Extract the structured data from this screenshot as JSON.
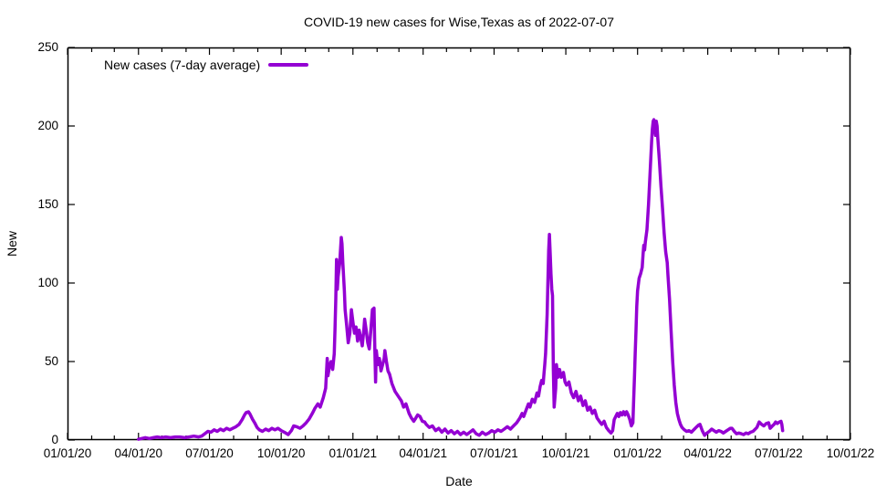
{
  "page": {
    "background": "#ffffff",
    "text_color": "#000000"
  },
  "chart_data": {
    "type": "line",
    "title": "COVID-19 new cases for Wise,Texas as of 2022-07-07",
    "xlabel": "Date",
    "ylabel": "New",
    "grid": false,
    "legend_position": "top-left-inside",
    "legend": [
      {
        "label": "New cases (7-day average)",
        "color": "#9400D3"
      }
    ],
    "axis_color": "#000000",
    "ylim": [
      0,
      250
    ],
    "y_ticks": [
      0,
      50,
      100,
      150,
      200,
      250
    ],
    "x_range": [
      "2020-01-01",
      "2022-10-01"
    ],
    "x_tick_labels": [
      "01/01/20",
      "04/01/20",
      "07/01/20",
      "10/01/20",
      "01/01/21",
      "04/01/21",
      "07/01/21",
      "10/01/21",
      "01/01/22",
      "04/01/22",
      "07/01/22",
      "10/01/22"
    ],
    "x_minor_ticks": "monthly",
    "series": [
      {
        "name": "New cases (7-day average)",
        "color": "#9400D3",
        "line_width": 3.5,
        "x_unit": "days since 2020-01-01",
        "points": [
          [
            91,
            0.5
          ],
          [
            95,
            1
          ],
          [
            100,
            1.5
          ],
          [
            105,
            1
          ],
          [
            110,
            1.5
          ],
          [
            115,
            2
          ],
          [
            120,
            1.5
          ],
          [
            126,
            2
          ],
          [
            132,
            1.5
          ],
          [
            138,
            2
          ],
          [
            144,
            2
          ],
          [
            150,
            1.5
          ],
          [
            156,
            2
          ],
          [
            162,
            2.5
          ],
          [
            168,
            2
          ],
          [
            172,
            2.5
          ],
          [
            176,
            4
          ],
          [
            180,
            5.5
          ],
          [
            184,
            5
          ],
          [
            188,
            6.5
          ],
          [
            192,
            5.5
          ],
          [
            196,
            7
          ],
          [
            200,
            6
          ],
          [
            204,
            7.5
          ],
          [
            208,
            6.5
          ],
          [
            212,
            7.5
          ],
          [
            216,
            8.5
          ],
          [
            220,
            10
          ],
          [
            224,
            13
          ],
          [
            227,
            16
          ],
          [
            229,
            17.5
          ],
          [
            232,
            18
          ],
          [
            234,
            16.5
          ],
          [
            237,
            13.5
          ],
          [
            240,
            11
          ],
          [
            243,
            8
          ],
          [
            246,
            6.5
          ],
          [
            250,
            5.5
          ],
          [
            254,
            7
          ],
          [
            258,
            6
          ],
          [
            262,
            7.5
          ],
          [
            266,
            6.5
          ],
          [
            270,
            7.5
          ],
          [
            274,
            6
          ],
          [
            278,
            5
          ],
          [
            283,
            3.5
          ],
          [
            287,
            6
          ],
          [
            290,
            9
          ],
          [
            294,
            8.5
          ],
          [
            298,
            7.5
          ],
          [
            302,
            9
          ],
          [
            306,
            11
          ],
          [
            310,
            13.5
          ],
          [
            314,
            17
          ],
          [
            317,
            20
          ],
          [
            321,
            23
          ],
          [
            324,
            21
          ],
          [
            328,
            27
          ],
          [
            331,
            33
          ],
          [
            332,
            42
          ],
          [
            333,
            52
          ],
          [
            334,
            41
          ],
          [
            336,
            47
          ],
          [
            338,
            50
          ],
          [
            340,
            45
          ],
          [
            342,
            55
          ],
          [
            343,
            70
          ],
          [
            344,
            90
          ],
          [
            345,
            115
          ],
          [
            346,
            96
          ],
          [
            347,
            104
          ],
          [
            349,
            112
          ],
          [
            351,
            129
          ],
          [
            352,
            125
          ],
          [
            353,
            113
          ],
          [
            355,
            95
          ],
          [
            356,
            83
          ],
          [
            358,
            73
          ],
          [
            360,
            62
          ],
          [
            362,
            68
          ],
          [
            364,
            83
          ],
          [
            366,
            75
          ],
          [
            368,
            68
          ],
          [
            370,
            72
          ],
          [
            372,
            63
          ],
          [
            374,
            70
          ],
          [
            376,
            65
          ],
          [
            378,
            60
          ],
          [
            380,
            70
          ],
          [
            381,
            77
          ],
          [
            383,
            70
          ],
          [
            385,
            62
          ],
          [
            387,
            58
          ],
          [
            389,
            70
          ],
          [
            391,
            83
          ],
          [
            393,
            84
          ],
          [
            394,
            60
          ],
          [
            395,
            37
          ],
          [
            396,
            57
          ],
          [
            398,
            48
          ],
          [
            400,
            52
          ],
          [
            402,
            44
          ],
          [
            404,
            48
          ],
          [
            406,
            52
          ],
          [
            407,
            57
          ],
          [
            409,
            50
          ],
          [
            411,
            44
          ],
          [
            413,
            42
          ],
          [
            416,
            36
          ],
          [
            420,
            31
          ],
          [
            424,
            28
          ],
          [
            428,
            25
          ],
          [
            431,
            21
          ],
          [
            434,
            23
          ],
          [
            438,
            17
          ],
          [
            441,
            14
          ],
          [
            444,
            12
          ],
          [
            446,
            13.5
          ],
          [
            449,
            16
          ],
          [
            452,
            15
          ],
          [
            455,
            12
          ],
          [
            458,
            11.5
          ],
          [
            460,
            10
          ],
          [
            464,
            8
          ],
          [
            468,
            9
          ],
          [
            472,
            6
          ],
          [
            476,
            7.5
          ],
          [
            480,
            5
          ],
          [
            484,
            7
          ],
          [
            488,
            4.5
          ],
          [
            492,
            6
          ],
          [
            496,
            4
          ],
          [
            500,
            5.5
          ],
          [
            504,
            3.5
          ],
          [
            508,
            5
          ],
          [
            512,
            3.5
          ],
          [
            516,
            5
          ],
          [
            520,
            6.5
          ],
          [
            524,
            4
          ],
          [
            528,
            3
          ],
          [
            532,
            5
          ],
          [
            536,
            3.5
          ],
          [
            540,
            4.5
          ],
          [
            544,
            6
          ],
          [
            548,
            5
          ],
          [
            552,
            6.5
          ],
          [
            556,
            5.5
          ],
          [
            560,
            7
          ],
          [
            564,
            8.5
          ],
          [
            568,
            7
          ],
          [
            572,
            9
          ],
          [
            576,
            11
          ],
          [
            580,
            14
          ],
          [
            583,
            17
          ],
          [
            585,
            15
          ],
          [
            588,
            19
          ],
          [
            591,
            23
          ],
          [
            593,
            21
          ],
          [
            596,
            26
          ],
          [
            599,
            24
          ],
          [
            602,
            30
          ],
          [
            604,
            28
          ],
          [
            606,
            34
          ],
          [
            608,
            38
          ],
          [
            610,
            36
          ],
          [
            611,
            42
          ],
          [
            612,
            48
          ],
          [
            613,
            55
          ],
          [
            615,
            80
          ],
          [
            616,
            100
          ],
          [
            617,
            121
          ],
          [
            618,
            131
          ],
          [
            619,
            118
          ],
          [
            620,
            106
          ],
          [
            621,
            96
          ],
          [
            622,
            92
          ],
          [
            623,
            45
          ],
          [
            624,
            21
          ],
          [
            626,
            33
          ],
          [
            627,
            48
          ],
          [
            629,
            40
          ],
          [
            631,
            45
          ],
          [
            633,
            40
          ],
          [
            636,
            43
          ],
          [
            638,
            37
          ],
          [
            640,
            35
          ],
          [
            643,
            37
          ],
          [
            646,
            30
          ],
          [
            649,
            27
          ],
          [
            652,
            31
          ],
          [
            655,
            25
          ],
          [
            658,
            28
          ],
          [
            661,
            22
          ],
          [
            664,
            25
          ],
          [
            667,
            19
          ],
          [
            670,
            21
          ],
          [
            673,
            17
          ],
          [
            676,
            19
          ],
          [
            679,
            14
          ],
          [
            682,
            12
          ],
          [
            685,
            10
          ],
          [
            688,
            12
          ],
          [
            691,
            8
          ],
          [
            694,
            6
          ],
          [
            697,
            4.5
          ],
          [
            699,
            6
          ],
          [
            701,
            13
          ],
          [
            703,
            15
          ],
          [
            705,
            17
          ],
          [
            707,
            15
          ],
          [
            709,
            17.5
          ],
          [
            711,
            16
          ],
          [
            713,
            18
          ],
          [
            715,
            16
          ],
          [
            717,
            18
          ],
          [
            719,
            16
          ],
          [
            721,
            13
          ],
          [
            723,
            9
          ],
          [
            725,
            11
          ],
          [
            726,
            25
          ],
          [
            727,
            40
          ],
          [
            728,
            55
          ],
          [
            729,
            70
          ],
          [
            730,
            85
          ],
          [
            731,
            95
          ],
          [
            733,
            103
          ],
          [
            735,
            106
          ],
          [
            737,
            110
          ],
          [
            738,
            118
          ],
          [
            739,
            124
          ],
          [
            740,
            121
          ],
          [
            741,
            126
          ],
          [
            743,
            134
          ],
          [
            745,
            150
          ],
          [
            747,
            170
          ],
          [
            749,
            190
          ],
          [
            750,
            198
          ],
          [
            751,
            203
          ],
          [
            752,
            204
          ],
          [
            753,
            198
          ],
          [
            754,
            194
          ],
          [
            755,
            203
          ],
          [
            756,
            200
          ],
          [
            757,
            192
          ],
          [
            759,
            178
          ],
          [
            761,
            162
          ],
          [
            763,
            148
          ],
          [
            765,
            132
          ],
          [
            767,
            120
          ],
          [
            769,
            113
          ],
          [
            770,
            105
          ],
          [
            772,
            90
          ],
          [
            774,
            70
          ],
          [
            776,
            50
          ],
          [
            778,
            35
          ],
          [
            780,
            24
          ],
          [
            782,
            17
          ],
          [
            784,
            13
          ],
          [
            786,
            10
          ],
          [
            788,
            8
          ],
          [
            791,
            6.5
          ],
          [
            794,
            5.5
          ],
          [
            797,
            6
          ],
          [
            800,
            5
          ],
          [
            803,
            6.5
          ],
          [
            806,
            8
          ],
          [
            809,
            9.5
          ],
          [
            811,
            10
          ],
          [
            814,
            6
          ],
          [
            817,
            3
          ],
          [
            820,
            4.5
          ],
          [
            823,
            5.5
          ],
          [
            826,
            7
          ],
          [
            829,
            6
          ],
          [
            832,
            5
          ],
          [
            835,
            6
          ],
          [
            838,
            5.5
          ],
          [
            841,
            4.5
          ],
          [
            844,
            5.5
          ],
          [
            847,
            6.5
          ],
          [
            850,
            7.5
          ],
          [
            852,
            7.5
          ],
          [
            855,
            5.5
          ],
          [
            858,
            4
          ],
          [
            861,
            4.5
          ],
          [
            864,
            4
          ],
          [
            867,
            3.5
          ],
          [
            870,
            4.5
          ],
          [
            873,
            4
          ],
          [
            876,
            5
          ],
          [
            879,
            5.5
          ],
          [
            881,
            6.5
          ],
          [
            884,
            8
          ],
          [
            887,
            11.5
          ],
          [
            890,
            10
          ],
          [
            893,
            9
          ],
          [
            896,
            10.5
          ],
          [
            899,
            11
          ],
          [
            901,
            7.5
          ],
          [
            904,
            9
          ],
          [
            906,
            10
          ],
          [
            908,
            11.5
          ],
          [
            910,
            10.5
          ],
          [
            913,
            11.5
          ],
          [
            915,
            12
          ],
          [
            916,
            10
          ],
          [
            917,
            6
          ]
        ]
      }
    ]
  }
}
